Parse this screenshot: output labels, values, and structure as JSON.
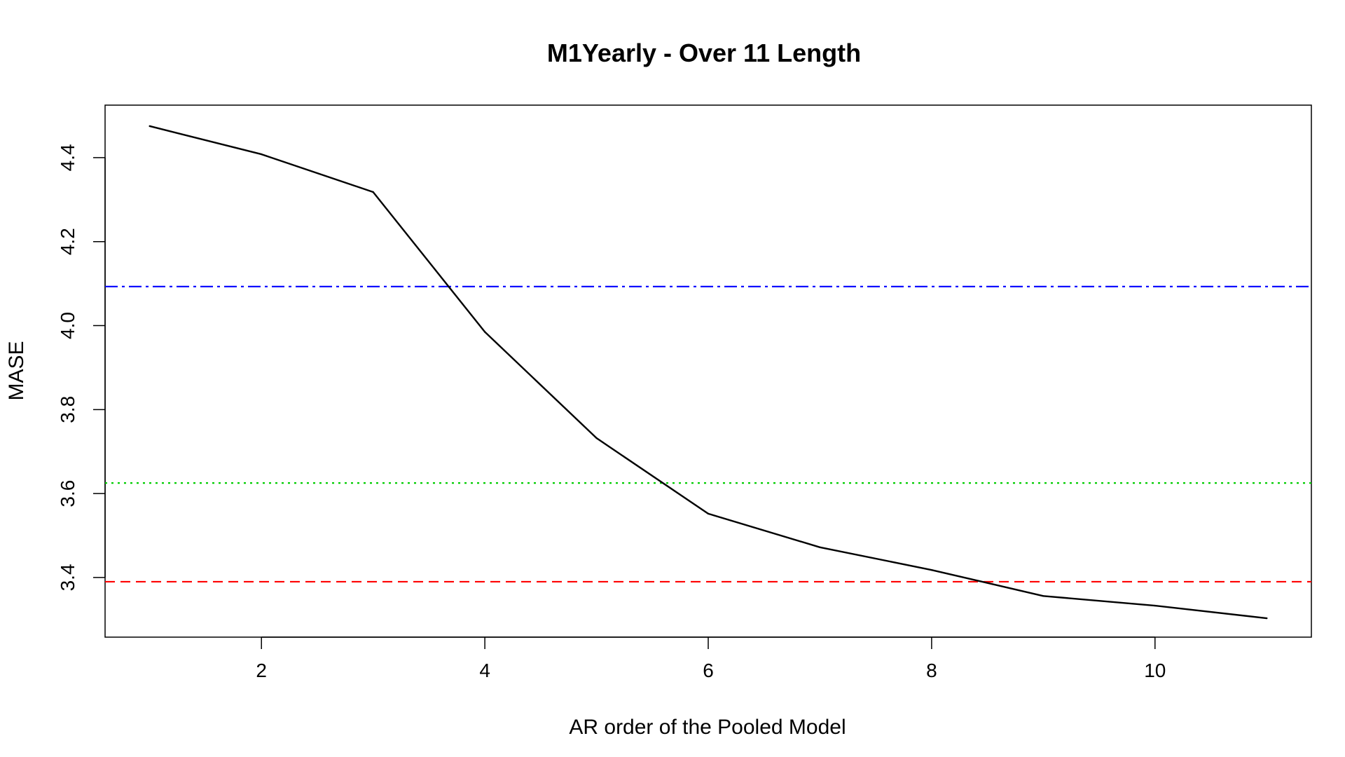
{
  "chart_data": {
    "type": "line",
    "title": "M1Yearly - Over 11 Length",
    "xlabel": "AR order of the Pooled Model",
    "ylabel": "MASE",
    "xlim": [
      0.6,
      11.4
    ],
    "ylim": [
      3.258,
      4.525
    ],
    "x_ticks": [
      2,
      4,
      6,
      8,
      10
    ],
    "y_ticks": [
      3.4,
      3.6,
      3.8,
      4.0,
      4.2,
      4.4
    ],
    "x_tick_labels": [
      "2",
      "4",
      "6",
      "8",
      "10"
    ],
    "y_tick_labels": [
      "3.4",
      "3.6",
      "3.8",
      "4.0",
      "4.2",
      "4.4"
    ],
    "grid": false,
    "series": [
      {
        "color": "#000000",
        "x": [
          1,
          2,
          3,
          4,
          5,
          6,
          7,
          8,
          9,
          10,
          11
        ],
        "y": [
          4.475,
          4.408,
          4.318,
          3.985,
          3.732,
          3.552,
          3.472,
          3.418,
          3.356,
          3.333,
          3.303
        ]
      }
    ],
    "reference_lines": [
      {
        "y": 4.093,
        "color": "#0000ff",
        "style": "dash-dot"
      },
      {
        "y": 3.625,
        "color": "#00cd00",
        "style": "dotted"
      },
      {
        "y": 3.39,
        "color": "#ff0000",
        "style": "dashed"
      }
    ]
  }
}
